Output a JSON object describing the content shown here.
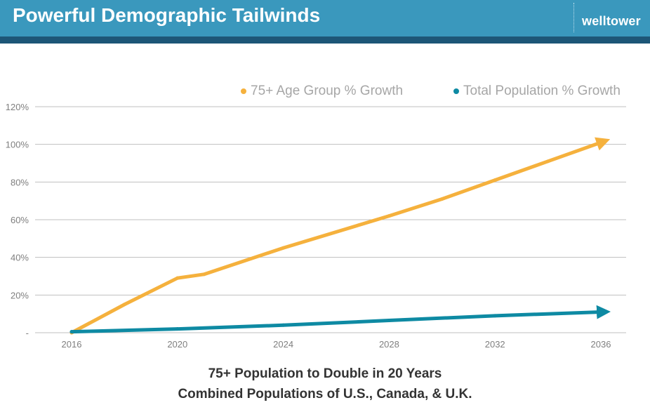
{
  "header": {
    "title": "Powerful Demographic Tailwinds",
    "logo_text": "welltower"
  },
  "colors": {
    "header_bg": "#3a98bd",
    "header_strip": "#1d5677",
    "series_75plus": "#f5b13d",
    "series_total": "#0e8aa3",
    "grid": "#bfbfbf",
    "tick_text": "#7f7f7f"
  },
  "chart_data": {
    "type": "line",
    "x": [
      2016,
      2020,
      2024,
      2028,
      2032,
      2036
    ],
    "x_tick_labels": [
      "2016",
      "2020",
      "2024",
      "2028",
      "2032",
      "2036"
    ],
    "y_tick_values": [
      0,
      20,
      40,
      60,
      80,
      100,
      120
    ],
    "y_tick_labels": [
      "-",
      "20%",
      "40%",
      "60%",
      "80%",
      "100%",
      "120%"
    ],
    "ylim": [
      0,
      120
    ],
    "xlim": [
      2016,
      2036
    ],
    "grid": true,
    "legend_position": "top-right",
    "series": [
      {
        "name": "75+ Age Group % Growth",
        "color": "#f5b13d",
        "x": [
          2016,
          2018,
          2020,
          2021,
          2024,
          2028,
          2030,
          2032,
          2034,
          2036
        ],
        "values": [
          0,
          15,
          29,
          31,
          45,
          62,
          71,
          81,
          91,
          101
        ]
      },
      {
        "name": "Total Population % Growth",
        "color": "#0e8aa3",
        "x": [
          2016,
          2020,
          2024,
          2028,
          2032,
          2036
        ],
        "values": [
          0.5,
          2.0,
          4.0,
          6.5,
          9.0,
          11.0
        ]
      }
    ]
  },
  "caption": {
    "line1": "75+ Population to Double in 20 Years",
    "line2": "Combined Populations of U.S., Canada, & U.K."
  }
}
